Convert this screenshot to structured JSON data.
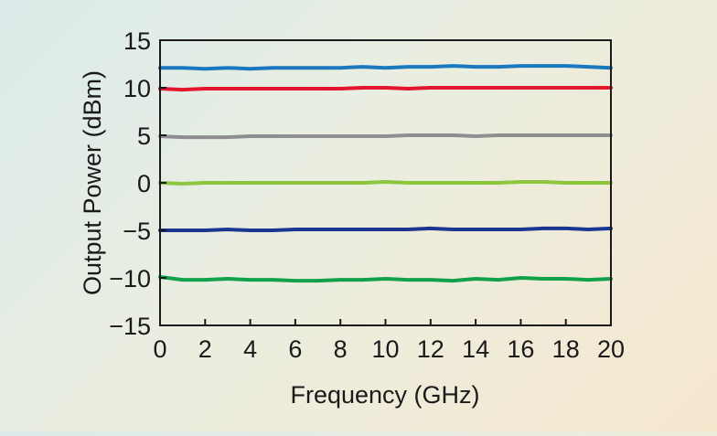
{
  "chart_data": {
    "type": "line",
    "title": "",
    "xlabel": "Frequency (GHz)",
    "ylabel": "Output  Power (dBm)",
    "xlim": [
      0,
      20
    ],
    "ylim": [
      -15,
      15
    ],
    "xticks": [
      "0",
      "2",
      "4",
      "6",
      "8",
      "10",
      "12",
      "14",
      "16",
      "18",
      "20"
    ],
    "yticks": [
      "15",
      "10",
      "5",
      "0",
      "−5",
      "−10",
      "−15"
    ],
    "grid": false,
    "legend": "none",
    "x": [
      0,
      1,
      2,
      3,
      4,
      5,
      6,
      7,
      8,
      9,
      10,
      11,
      12,
      13,
      14,
      15,
      16,
      17,
      18,
      19,
      20
    ],
    "series": [
      {
        "color": "#1a78be",
        "values": [
          12.1,
          12.1,
          12.0,
          12.1,
          12.0,
          12.1,
          12.1,
          12.1,
          12.1,
          12.2,
          12.1,
          12.2,
          12.2,
          12.3,
          12.2,
          12.2,
          12.3,
          12.3,
          12.3,
          12.2,
          12.1
        ]
      },
      {
        "color": "#e2162c",
        "values": [
          9.9,
          9.8,
          9.9,
          9.9,
          9.9,
          9.9,
          9.9,
          9.9,
          9.9,
          10.0,
          10.0,
          9.9,
          10.0,
          10.0,
          10.0,
          10.0,
          10.0,
          10.0,
          10.0,
          10.0,
          10.0
        ]
      },
      {
        "color": "#8e8e90",
        "values": [
          4.9,
          4.8,
          4.8,
          4.8,
          4.9,
          4.9,
          4.9,
          4.9,
          4.9,
          4.9,
          4.9,
          5.0,
          5.0,
          5.0,
          4.9,
          5.0,
          5.0,
          5.0,
          5.0,
          5.0,
          5.0
        ]
      },
      {
        "color": "#8cc63e",
        "values": [
          0.0,
          -0.1,
          0.0,
          0.0,
          0.0,
          0.0,
          0.0,
          0.0,
          0.0,
          0.0,
          0.1,
          0.0,
          0.0,
          0.0,
          0.0,
          0.0,
          0.1,
          0.1,
          0.0,
          0.0,
          0.0
        ]
      },
      {
        "color": "#1a3691",
        "values": [
          -5.0,
          -5.0,
          -5.0,
          -4.9,
          -5.0,
          -5.0,
          -4.9,
          -4.9,
          -4.9,
          -4.9,
          -4.9,
          -4.9,
          -4.8,
          -4.9,
          -4.9,
          -4.9,
          -4.9,
          -4.8,
          -4.8,
          -4.9,
          -4.8
        ]
      },
      {
        "color": "#12a14b",
        "values": [
          -9.9,
          -10.2,
          -10.2,
          -10.1,
          -10.2,
          -10.2,
          -10.3,
          -10.3,
          -10.2,
          -10.2,
          -10.1,
          -10.2,
          -10.2,
          -10.3,
          -10.1,
          -10.2,
          -10.0,
          -10.1,
          -10.1,
          -10.2,
          -10.1
        ]
      }
    ]
  }
}
